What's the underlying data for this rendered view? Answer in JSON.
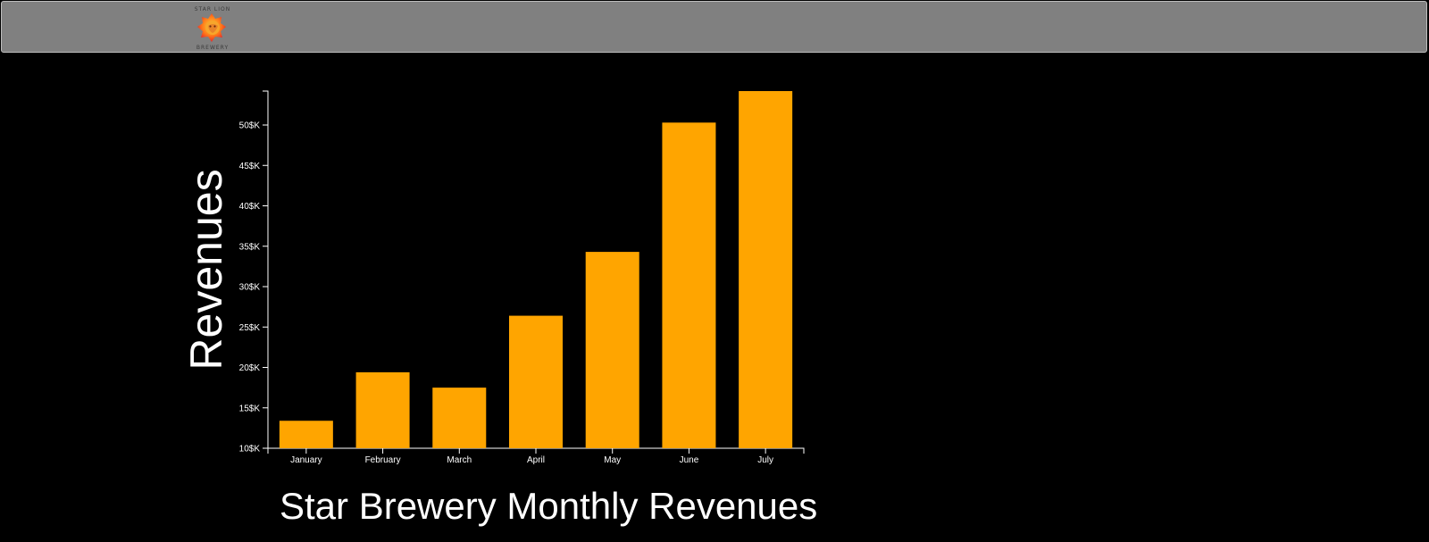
{
  "navbar": {
    "logo": {
      "name": "star-lion-brewery-logo",
      "text_top": "STAR LION",
      "text_bottom": "BREWERY"
    }
  },
  "colors": {
    "background": "#000000",
    "navbar": "#808080",
    "bar": "#ffa500",
    "axis": "#ffffff"
  },
  "chart_data": {
    "type": "bar",
    "title": "Star Brewery Monthly Revenues",
    "xlabel": "",
    "ylabel": "Revenues",
    "categories": [
      "January",
      "February",
      "March",
      "April",
      "May",
      "June",
      "July"
    ],
    "values": [
      13.4,
      19.4,
      17.5,
      26.4,
      34.3,
      50.3,
      54.2
    ],
    "ylim": [
      10,
      54.2
    ],
    "yticks": [
      10,
      15,
      20,
      25,
      30,
      35,
      40,
      45,
      50
    ],
    "ytick_labels": [
      "10$K",
      "15$K",
      "20$K",
      "25$K",
      "30$K",
      "35$K",
      "40$K",
      "45$K",
      "50$K"
    ],
    "grid": false,
    "legend": "none"
  }
}
